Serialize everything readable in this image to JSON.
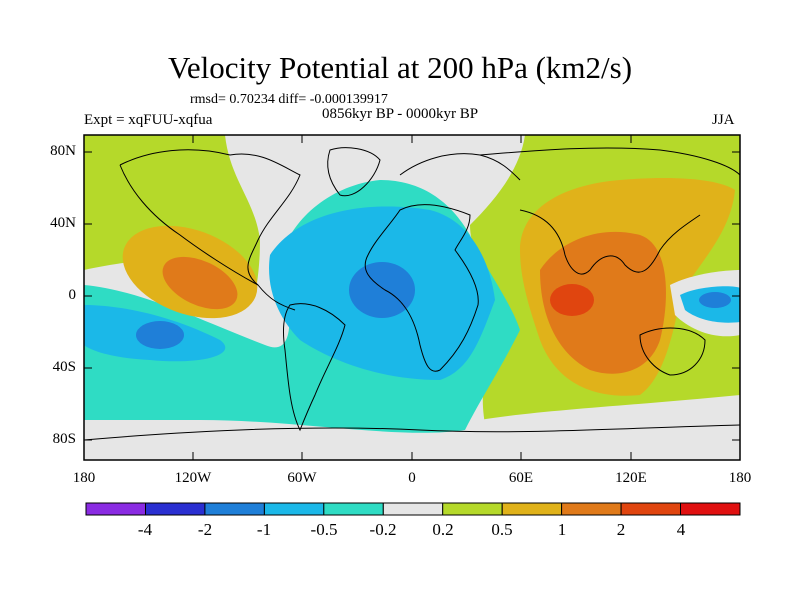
{
  "header": {
    "title": "Velocity Potential at 200 hPa (km2/s)",
    "stats": "rmsd= 0.70234  diff= -0.000139917",
    "period": "0856kyr BP - 0000kyr BP",
    "experiment": "Expt = xqFUU-xqfua",
    "season": "JJA"
  },
  "axes": {
    "lat_labels": [
      "80N",
      "40N",
      "0",
      "40S",
      "80S"
    ],
    "lon_labels": [
      "180",
      "120W",
      "60W",
      "0",
      "60E",
      "120E",
      "180"
    ]
  },
  "colorbar": {
    "labels": [
      "-4",
      "-2",
      "-1",
      "-0.5",
      "-0.2",
      "0.2",
      "0.5",
      "1",
      "2",
      "4"
    ],
    "colors": [
      "#8a2be2",
      "#2a2fd1",
      "#1f7fd8",
      "#1bb8e8",
      "#2fdcc4",
      "#e6e6e6",
      "#b5d92a",
      "#e0b21a",
      "#e07a1a",
      "#e0450f",
      "#e01010"
    ]
  },
  "field_colors": {
    "neutral": "#e6e6e6",
    "positive_weak": "#b5d92a",
    "positive_mid": "#e0b21a",
    "positive_strong": "#e07a1a",
    "positive_max": "#e0450f",
    "negative_weak": "#2fdcc4",
    "negative_mid": "#1bb8e8",
    "negative_strong": "#1f7fd8"
  }
}
